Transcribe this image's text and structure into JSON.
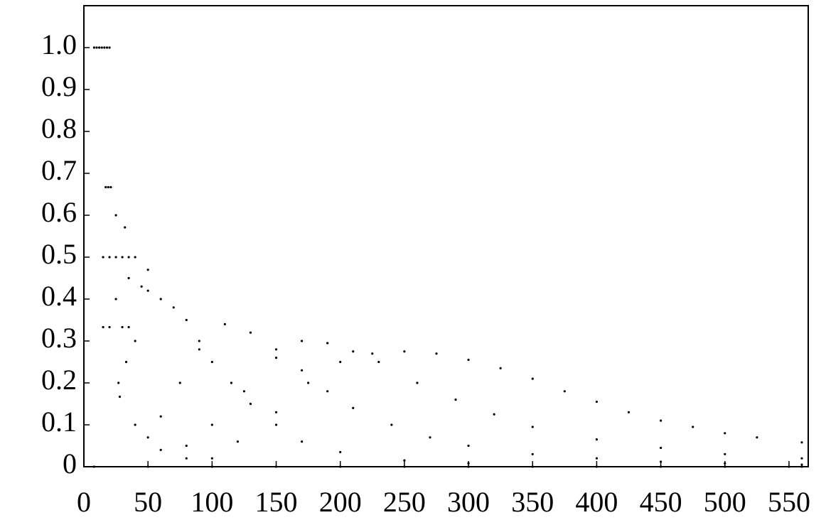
{
  "chart_data": {
    "type": "scatter",
    "color": "#000000",
    "xlim": [
      0,
      565
    ],
    "ylim": [
      0,
      1.1
    ],
    "xticks": [
      0,
      50,
      100,
      150,
      200,
      250,
      300,
      350,
      400,
      450,
      500,
      550
    ],
    "yticks": [
      0,
      0.1,
      0.2,
      0.3,
      0.4,
      0.5,
      0.6,
      0.7,
      0.8,
      0.9,
      {
        "value": 1,
        "label": "1.0"
      }
    ],
    "x": [
      8,
      10,
      12,
      14,
      16,
      18,
      20,
      17,
      19,
      21,
      25,
      32,
      15,
      20,
      25,
      30,
      35,
      40,
      15,
      20,
      30,
      35,
      25,
      27,
      28,
      33,
      35,
      45,
      50,
      100,
      120,
      150,
      175,
      200,
      225,
      250,
      275,
      300,
      325,
      350,
      375,
      400,
      425,
      450,
      475,
      500,
      525,
      560,
      80,
      100,
      125,
      150,
      170,
      190,
      210,
      230,
      260,
      290,
      320,
      350,
      400,
      450,
      500,
      560,
      60,
      75,
      90,
      110,
      130,
      150,
      170,
      190,
      210,
      240,
      270,
      300,
      350,
      400,
      450,
      500,
      560,
      40,
      50,
      60,
      70,
      80,
      90,
      100,
      115,
      130,
      150,
      170,
      200,
      250,
      300,
      40,
      50,
      60,
      80,
      8,
      50,
      100,
      150,
      200,
      250,
      300,
      350,
      400,
      450,
      500,
      550,
      560
    ],
    "values": [
      1,
      1,
      1,
      1,
      1,
      1,
      1,
      0.667,
      0.667,
      0.667,
      0.6,
      0.571,
      0.5,
      0.5,
      0.5,
      0.5,
      0.5,
      0.5,
      0.333,
      0.333,
      0.333,
      0.333,
      0.4,
      0.2,
      0.167,
      0.25,
      0.45,
      0.43,
      0.47,
      0.02,
      0.06,
      0.13,
      0.2,
      0.25,
      0.27,
      0.275,
      0.27,
      0.255,
      0.235,
      0.21,
      0.18,
      0.155,
      0.13,
      0.11,
      0.095,
      0.08,
      0.07,
      0.058,
      0.05,
      0.1,
      0.18,
      0.26,
      0.3,
      0.295,
      0.275,
      0.25,
      0.2,
      0.16,
      0.125,
      0.095,
      0.065,
      0.045,
      0.03,
      0.02,
      0.12,
      0.2,
      0.28,
      0.34,
      0.32,
      0.28,
      0.23,
      0.18,
      0.14,
      0.1,
      0.07,
      0.05,
      0.03,
      0.02,
      0.012,
      0.008,
      0.005,
      0.3,
      0.42,
      0.4,
      0.38,
      0.35,
      0.3,
      0.25,
      0.2,
      0.15,
      0.1,
      0.06,
      0.035,
      0.015,
      0.008,
      0.1,
      0.07,
      0.04,
      0.02,
      0,
      0,
      0,
      0,
      0,
      0,
      0,
      0,
      0,
      0,
      0,
      0,
      0
    ]
  }
}
